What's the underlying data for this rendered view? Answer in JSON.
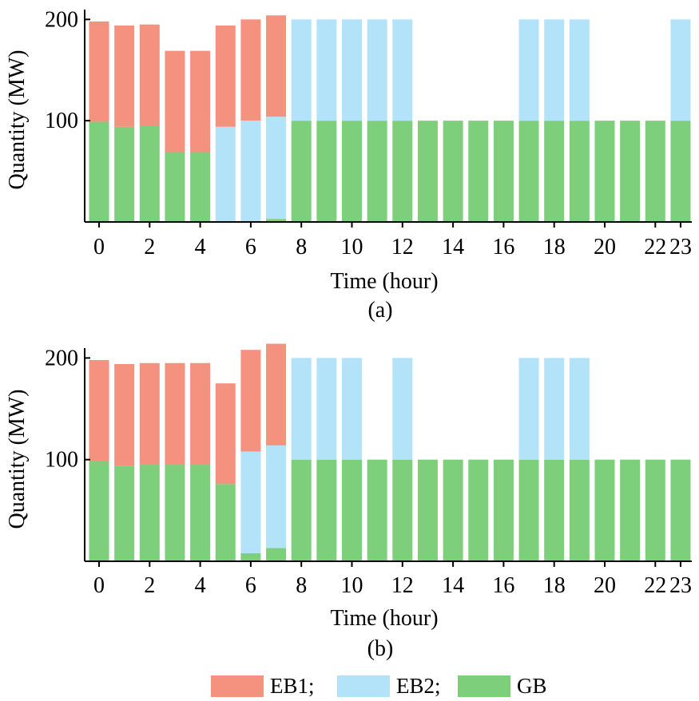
{
  "colors": {
    "EB1": "#f4917f",
    "EB2": "#b3e3f8",
    "GB": "#7ecf7b"
  },
  "legend": [
    {
      "key": "EB1",
      "label": "EB1;"
    },
    {
      "key": "EB2",
      "label": "EB2;"
    },
    {
      "key": "GB",
      "label": "GB"
    }
  ],
  "chart_data": [
    {
      "type": "bar",
      "stacked": true,
      "caption": "(a)",
      "xlabel": "Time (hour)",
      "ylabel": "Quantity (MW)",
      "x": [
        0,
        1,
        2,
        3,
        4,
        5,
        6,
        7,
        8,
        9,
        10,
        11,
        12,
        13,
        14,
        15,
        16,
        17,
        18,
        19,
        20,
        21,
        22,
        23
      ],
      "xticks": [
        "0",
        "2",
        "4",
        "6",
        "8",
        "10",
        "12",
        "14",
        "16",
        "18",
        "20",
        "22",
        "23"
      ],
      "xtick_positions": [
        0,
        2,
        4,
        6,
        8,
        10,
        12,
        14,
        16,
        18,
        20,
        22,
        23
      ],
      "yticks": [
        100,
        200
      ],
      "ylim": [
        0,
        205
      ],
      "series": [
        {
          "name": "GB",
          "values": [
            99,
            94,
            95,
            69,
            69,
            0,
            0,
            3,
            100,
            100,
            100,
            100,
            100,
            100,
            100,
            100,
            100,
            100,
            100,
            100,
            100,
            100,
            100,
            100
          ]
        },
        {
          "name": "EB2",
          "values": [
            0,
            0,
            0,
            0,
            0,
            94,
            100,
            101,
            100,
            100,
            100,
            100,
            100,
            0,
            0,
            0,
            0,
            100,
            100,
            100,
            0,
            0,
            0,
            100
          ]
        },
        {
          "name": "EB1",
          "values": [
            99,
            100,
            100,
            100,
            100,
            100,
            100,
            100,
            0,
            0,
            0,
            0,
            0,
            0,
            0,
            0,
            0,
            0,
            0,
            0,
            0,
            0,
            0,
            0
          ]
        }
      ]
    },
    {
      "type": "bar",
      "stacked": true,
      "caption": "(b)",
      "xlabel": "Time (hour)",
      "ylabel": "Quantity (MW)",
      "x": [
        0,
        1,
        2,
        3,
        4,
        5,
        6,
        7,
        8,
        9,
        10,
        11,
        12,
        13,
        14,
        15,
        16,
        17,
        18,
        19,
        20,
        21,
        22,
        23
      ],
      "xticks": [
        "0",
        "2",
        "4",
        "6",
        "8",
        "10",
        "12",
        "14",
        "16",
        "18",
        "20",
        "22",
        "23"
      ],
      "xtick_positions": [
        0,
        2,
        4,
        6,
        8,
        10,
        12,
        14,
        16,
        18,
        20,
        22,
        23
      ],
      "yticks": [
        100,
        200
      ],
      "ylim": [
        0,
        205
      ],
      "series": [
        {
          "name": "GB",
          "values": [
            99,
            94,
            95,
            95,
            95,
            76,
            8,
            13,
            100,
            100,
            100,
            100,
            100,
            100,
            100,
            100,
            100,
            100,
            100,
            100,
            100,
            100,
            100,
            100
          ]
        },
        {
          "name": "EB2",
          "values": [
            0,
            0,
            0,
            0,
            0,
            0,
            100,
            101,
            100,
            100,
            100,
            0,
            100,
            0,
            0,
            0,
            0,
            100,
            100,
            100,
            0,
            0,
            0,
            0
          ]
        },
        {
          "name": "EB1",
          "values": [
            99,
            100,
            100,
            100,
            100,
            99,
            100,
            100,
            0,
            0,
            0,
            0,
            0,
            0,
            0,
            0,
            0,
            0,
            0,
            0,
            0,
            0,
            0,
            0
          ]
        }
      ]
    }
  ]
}
